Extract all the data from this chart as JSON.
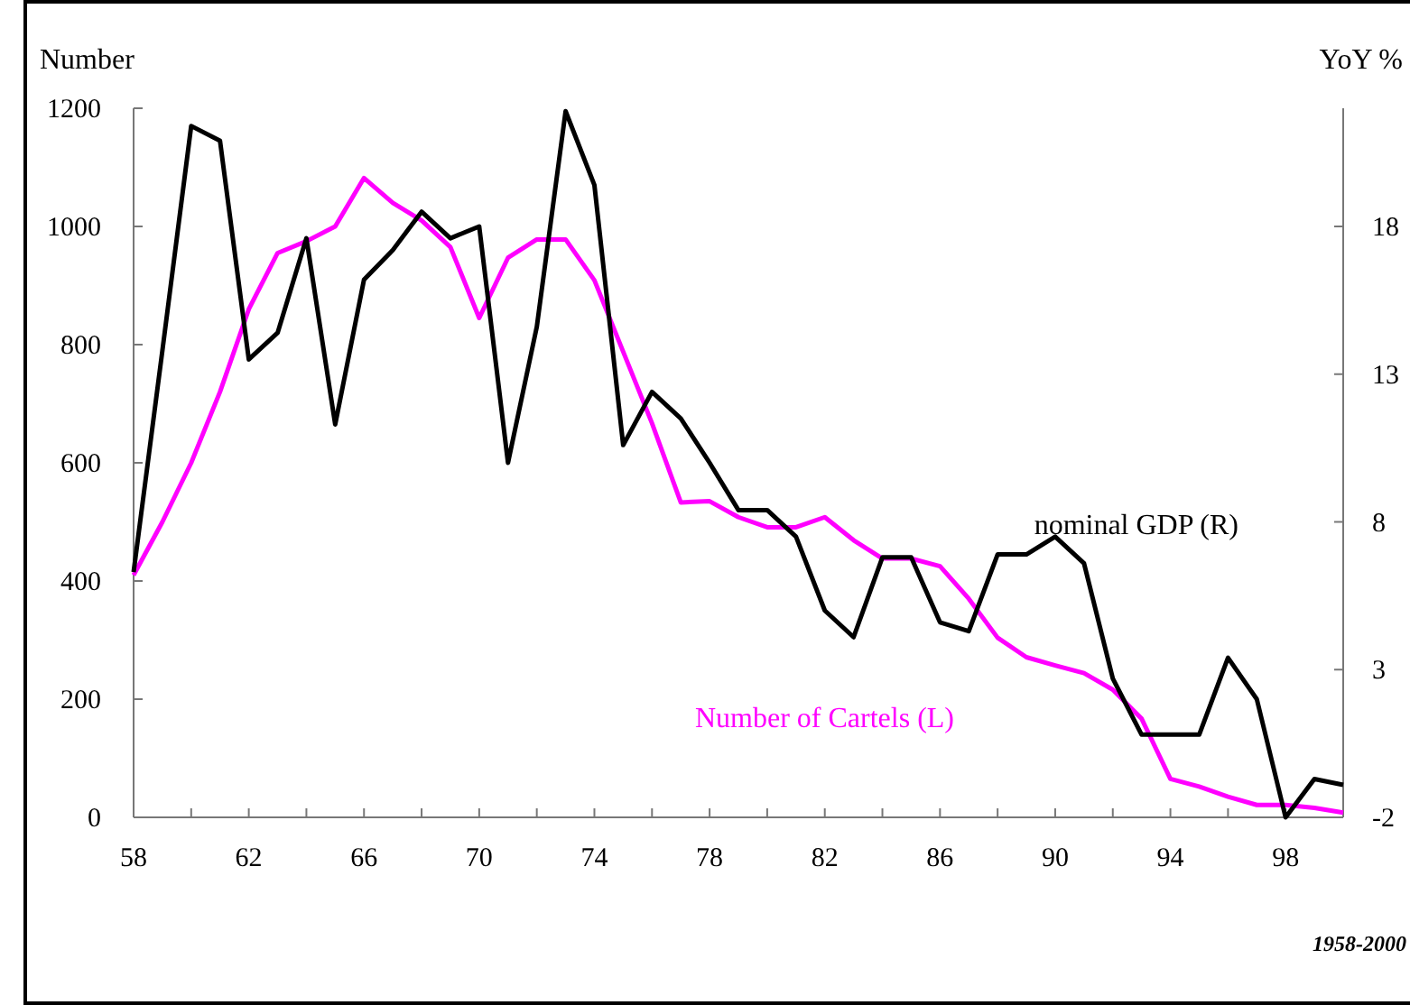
{
  "chart_data": {
    "type": "line",
    "ylabel": "Number",
    "y2label": "YoY %",
    "xlim": [
      1958,
      2000
    ],
    "xticks": [
      {
        "value": 1958,
        "label": "58"
      },
      {
        "value": 1960,
        "label": null
      },
      {
        "value": 1962,
        "label": "62"
      },
      {
        "value": 1964,
        "label": null
      },
      {
        "value": 1966,
        "label": "66"
      },
      {
        "value": 1968,
        "label": null
      },
      {
        "value": 1970,
        "label": "70"
      },
      {
        "value": 1972,
        "label": null
      },
      {
        "value": 1974,
        "label": "74"
      },
      {
        "value": 1976,
        "label": null
      },
      {
        "value": 1978,
        "label": "78"
      },
      {
        "value": 1980,
        "label": null
      },
      {
        "value": 1982,
        "label": "82"
      },
      {
        "value": 1984,
        "label": null
      },
      {
        "value": 1986,
        "label": "86"
      },
      {
        "value": 1988,
        "label": null
      },
      {
        "value": 1990,
        "label": "90"
      },
      {
        "value": 1992,
        "label": null
      },
      {
        "value": 1994,
        "label": "94"
      },
      {
        "value": 1996,
        "label": null
      },
      {
        "value": 1998,
        "label": "98"
      }
    ],
    "ylim": [
      0,
      1200
    ],
    "yticks": [
      0,
      200,
      400,
      600,
      800,
      1000,
      1200
    ],
    "y2lim": [
      -2,
      22
    ],
    "y2ticks": [
      -2,
      3,
      8,
      13,
      18
    ],
    "x": [
      1958,
      1959,
      1960,
      1961,
      1962,
      1963,
      1964,
      1965,
      1966,
      1967,
      1968,
      1969,
      1970,
      1971,
      1972,
      1973,
      1974,
      1975,
      1976,
      1977,
      1978,
      1979,
      1980,
      1981,
      1982,
      1983,
      1984,
      1985,
      1986,
      1987,
      1988,
      1989,
      1990,
      1991,
      1992,
      1993,
      1994,
      1995,
      1996,
      1997,
      1998,
      1999,
      2000
    ],
    "series": [
      {
        "name": "Number of Cartels (L)",
        "color": "#ff00ff",
        "values": [
          410,
          500,
          600,
          720,
          860,
          955,
          975,
          1000,
          1082,
          1040,
          1010,
          965,
          845,
          947,
          978,
          978,
          909,
          788,
          667,
          533,
          535,
          508,
          491,
          491,
          508,
          469,
          438,
          438,
          425,
          370,
          304,
          271,
          257,
          244,
          216,
          167,
          65,
          52,
          35,
          21,
          21,
          16,
          8
        ]
      },
      {
        "name": "nominal GDP (R)",
        "color": "#000000",
        "axis": "y2",
        "values": [
          6.3,
          13.8,
          21.4,
          20.9,
          13.5,
          14.4,
          17.6,
          11.3,
          16.2,
          17.2,
          18.5,
          17.6,
          18.0,
          10.0,
          14.6,
          21.9,
          19.4,
          10.6,
          12.4,
          11.5,
          10.0,
          8.4,
          8.4,
          7.5,
          5.0,
          4.1,
          6.8,
          6.8,
          4.6,
          4.3,
          6.9,
          6.9,
          7.5,
          6.6,
          2.7,
          0.8,
          0.8,
          0.8,
          3.4,
          2.0,
          -2.0,
          -0.7,
          -0.9
        ]
      }
    ],
    "annotations": [
      "1958-2000"
    ],
    "grid": false,
    "legend": false,
    "marker": "none",
    "line_style": "solid"
  }
}
